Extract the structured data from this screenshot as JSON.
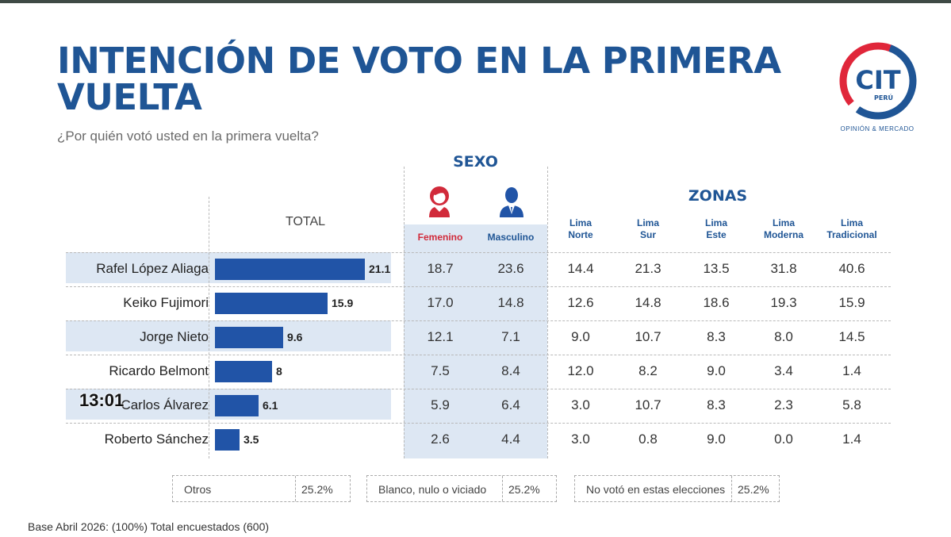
{
  "title": "INTENCIÓN DE VOTO EN LA PRIMERA VUELTA",
  "subtitle": "¿Por quién votó usted en la primera vuelta?",
  "logo": {
    "text": "CIT",
    "country": "PERÚ",
    "tagline": "OPINIÓN & MERCADO"
  },
  "headers": {
    "total": "TOTAL",
    "sexo": "SEXO",
    "zonas": "ZONAS",
    "femenino": "Femenino",
    "masculino": "Masculino",
    "zones": [
      {
        "line1": "Lima",
        "line2": "Norte"
      },
      {
        "line1": "Lima",
        "line2": "Sur"
      },
      {
        "line1": "Lima",
        "line2": "Este"
      },
      {
        "line1": "Lima",
        "line2": "Moderna"
      },
      {
        "line1": "Lima",
        "line2": "Tradicional"
      }
    ]
  },
  "timestamp": "13:01",
  "chart_data": {
    "type": "bar",
    "orientation": "horizontal",
    "categories": [
      "Rafel López Aliaga",
      "Keiko Fujimori",
      "Jorge Nieto",
      "Ricardo Belmont",
      "Carlos Álvarez",
      "Roberto Sánchez"
    ],
    "values": [
      21.1,
      15.9,
      9.6,
      8,
      6.1,
      3.5
    ],
    "value_labels": [
      "21.1",
      "15.9",
      "9.6",
      "8",
      "6.1",
      "3.5"
    ],
    "xlim": [
      0,
      21.1
    ],
    "table": {
      "femenino": [
        "18.7",
        "17.0",
        "12.1",
        "7.5",
        "5.9",
        "2.6"
      ],
      "masculino": [
        "23.6",
        "14.8",
        "7.1",
        "8.4",
        "6.4",
        "4.4"
      ],
      "lima_norte": [
        "14.4",
        "12.6",
        "9.0",
        "12.0",
        "3.0",
        "3.0"
      ],
      "lima_sur": [
        "21.3",
        "14.8",
        "10.7",
        "8.2",
        "10.7",
        "0.8"
      ],
      "lima_este": [
        "13.5",
        "18.6",
        "8.3",
        "9.0",
        "8.3",
        "9.0"
      ],
      "lima_moderna": [
        "31.8",
        "19.3",
        "8.0",
        "3.4",
        "2.3",
        "0.0"
      ],
      "lima_tradicional": [
        "40.6",
        "15.9",
        "14.5",
        "1.4",
        "5.8",
        "1.4"
      ]
    }
  },
  "others": [
    {
      "label": "Otros",
      "value": "25.2%"
    },
    {
      "label": "Blanco, nulo o viciado",
      "value": "25.2%"
    },
    {
      "label": "No votó en estas elecciones",
      "value": "25.2%"
    }
  ],
  "footer": "Base Abril 2026: (100%) Total encuestados (600)",
  "colors": {
    "title": "#1f5595",
    "bar": "#2154a7",
    "female": "#d12a3a",
    "logo_red": "#e0263a",
    "band": "#dde7f3"
  }
}
